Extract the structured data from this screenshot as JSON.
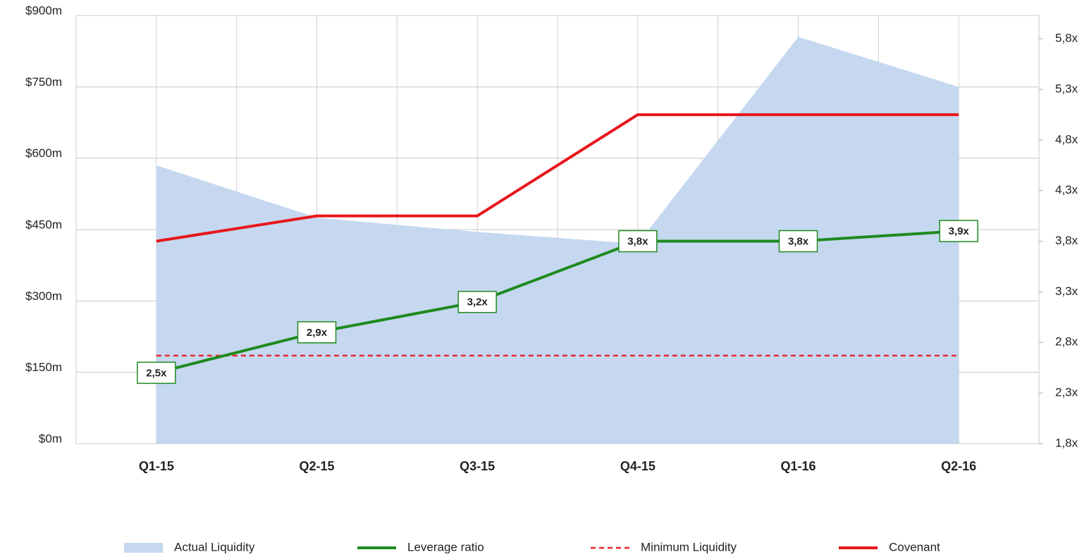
{
  "chart_data": {
    "type": "line",
    "categories": [
      "Q1-15",
      "Q2-15",
      "Q3-15",
      "Q4-15",
      "Q1-16",
      "Q2-16"
    ],
    "ylim": [
      0,
      900
    ],
    "yticks": [
      {
        "value": 0,
        "label": "$0m"
      },
      {
        "value": 150,
        "label": "$150m"
      },
      {
        "value": 300,
        "label": "$300m"
      },
      {
        "value": 450,
        "label": "$450m"
      },
      {
        "value": 600,
        "label": "$600m"
      },
      {
        "value": 750,
        "label": "$750m"
      },
      {
        "value": 900,
        "label": "$900m"
      }
    ],
    "y2lim": [
      1.8,
      6.03
    ],
    "y2ticks": [
      {
        "value": 1.8,
        "label": "1,8x"
      },
      {
        "value": 2.3,
        "label": "2,3x"
      },
      {
        "value": 2.8,
        "label": "2,8x"
      },
      {
        "value": 3.3,
        "label": "3,3x"
      },
      {
        "value": 3.8,
        "label": "3,8x"
      },
      {
        "value": 4.3,
        "label": "4,3x"
      },
      {
        "value": 4.8,
        "label": "4,8x"
      },
      {
        "value": 5.3,
        "label": "5,3x"
      },
      {
        "value": 5.8,
        "label": "5,8x"
      }
    ],
    "grid": true,
    "legend": "bottom",
    "series": [
      {
        "name": "Actual Liquidity",
        "type": "area",
        "color": "#c5d8f0",
        "values": [
          585,
          475,
          445,
          420,
          855,
          750
        ]
      },
      {
        "name": "Leverage ratio",
        "type": "line",
        "color": "#1e8a1e",
        "axis": "y2",
        "values": [
          2.5,
          2.9,
          3.2,
          3.8,
          3.8,
          3.9
        ],
        "value_labels": [
          "2,5x",
          "2,9x",
          "3,2x",
          "3,8x",
          "3,8x",
          "3,9x"
        ]
      },
      {
        "name": "Minimum Liquidity",
        "type": "line",
        "color": "#e8262b",
        "dashed": true,
        "values": [
          185,
          185,
          185,
          185,
          185,
          185
        ]
      },
      {
        "name": "Covenant",
        "type": "line",
        "color": "#e8161b",
        "axis": "y2",
        "values": [
          3.8,
          4.05,
          4.05,
          5.05,
          5.05,
          5.05
        ]
      }
    ]
  }
}
